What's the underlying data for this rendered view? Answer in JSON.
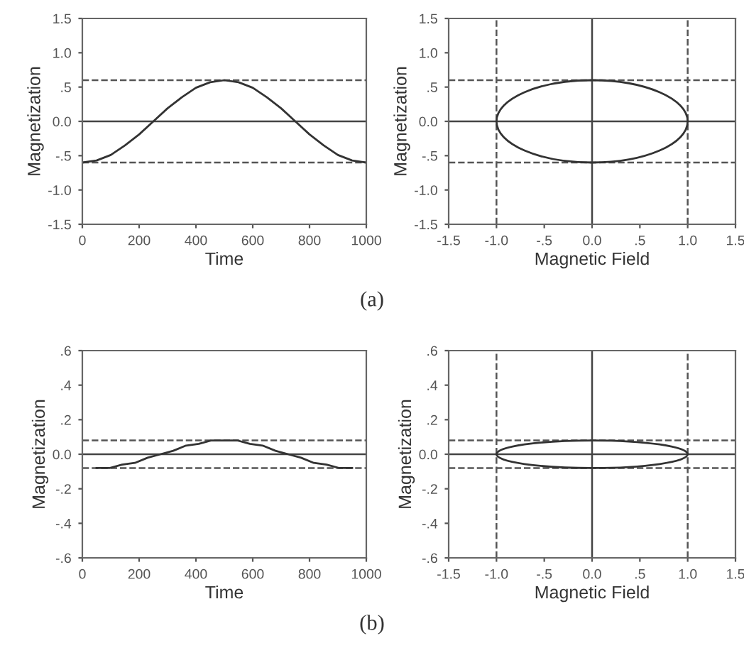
{
  "chart_data": [
    {
      "type": "line",
      "xlabel": "Time",
      "ylabel": "Magnetization",
      "annotations": [
        "(a)"
      ],
      "x": [
        0,
        50,
        100,
        150,
        200,
        250,
        300,
        350,
        400,
        450,
        500,
        550,
        600,
        650,
        700,
        750,
        800,
        850,
        900,
        950,
        1000
      ],
      "series": [
        {
          "color": "#333333",
          "values": [
            -0.6,
            -0.57,
            -0.49,
            -0.35,
            -0.19,
            0,
            0.19,
            0.35,
            0.49,
            0.57,
            0.6,
            0.57,
            0.49,
            0.35,
            0.19,
            0,
            -0.19,
            -0.35,
            -0.49,
            -0.57,
            -0.6
          ]
        }
      ],
      "xlim": [
        0,
        1000
      ],
      "xticks": [
        0,
        200,
        400,
        600,
        800,
        1000
      ],
      "ylim": [
        -1.5,
        1.5
      ],
      "yticks": [
        {
          "value": -1.5,
          "label": "-1.5"
        },
        {
          "value": -1,
          "label": "-1.0"
        },
        {
          "value": -0.5,
          "label": "-.5"
        },
        {
          "value": 0,
          "label": "0.0"
        },
        {
          "value": 0.5,
          "label": ".5"
        },
        {
          "value": 1,
          "label": "1.0"
        },
        {
          "value": 1.5,
          "label": "1.5"
        }
      ],
      "ref_lines": [
        {
          "axis": "y",
          "value": 0,
          "line_style": "solid",
          "color": "#444444"
        },
        {
          "axis": "y",
          "value": 0.6,
          "line_style": "dashed",
          "color": "#555555"
        },
        {
          "axis": "y",
          "value": -0.6,
          "line_style": "dashed",
          "color": "#555555"
        }
      ],
      "grid": false,
      "legend": false
    },
    {
      "type": "line",
      "xlabel": "Magnetic Field",
      "ylabel": "Magnetization",
      "xlim": [
        -1.5,
        1.5
      ],
      "xticks": [
        -1.5,
        {
          "value": -1,
          "label": "-1.0"
        },
        {
          "value": -0.5,
          "label": "-.5"
        },
        {
          "value": 0,
          "label": "0.0"
        },
        {
          "value": 0.5,
          "label": ".5"
        },
        {
          "value": 1,
          "label": "1.0"
        },
        1.5
      ],
      "ylim": [
        -1.5,
        1.5
      ],
      "yticks": [
        -1.5,
        {
          "value": -1,
          "label": "-1.0"
        },
        {
          "value": -0.5,
          "label": "-.5"
        },
        {
          "value": 0,
          "label": "0.0"
        },
        {
          "value": 0.5,
          "label": ".5"
        },
        {
          "value": 1,
          "label": "1.0"
        },
        1.5
      ],
      "ref_lines": [
        {
          "axis": "y",
          "value": 0,
          "line_style": "solid",
          "color": "#444444"
        },
        {
          "axis": "x",
          "value": 0,
          "line_style": "solid",
          "color": "#444444"
        },
        {
          "axis": "y",
          "value": 0.6,
          "line_style": "dashed",
          "color": "#555555"
        },
        {
          "axis": "y",
          "value": -0.6,
          "line_style": "dashed",
          "color": "#555555"
        },
        {
          "axis": "x",
          "value": 1,
          "line_style": "dashed",
          "color": "#555555"
        },
        {
          "axis": "x",
          "value": -1,
          "line_style": "dashed",
          "color": "#555555"
        }
      ],
      "grid": false,
      "legend": false
    },
    {
      "type": "line",
      "xlabel": "Time",
      "ylabel": "Magnetization",
      "annotations": [
        "(b)"
      ],
      "x": [
        50,
        95,
        140,
        185,
        230,
        275,
        320,
        365,
        410,
        455,
        500,
        545,
        590,
        635,
        680,
        725,
        770,
        815,
        860,
        905,
        950
      ],
      "series": [
        {
          "color": "#333333",
          "values": [
            -0.08,
            -0.08,
            -0.06,
            -0.05,
            -0.02,
            0,
            0.02,
            0.05,
            0.06,
            0.08,
            0.08,
            0.08,
            0.06,
            0.05,
            0.02,
            0,
            -0.02,
            -0.05,
            -0.06,
            -0.08,
            -0.08
          ]
        }
      ],
      "xlim": [
        0,
        1000
      ],
      "xticks": [
        0,
        200,
        400,
        600,
        800,
        1000
      ],
      "ylim": [
        -0.6,
        0.6
      ],
      "yticks": [
        {
          "value": -0.6,
          "label": "-.6"
        },
        {
          "value": -0.4,
          "label": "-.4"
        },
        {
          "value": -0.2,
          "label": "-.2"
        },
        {
          "value": 0,
          "label": "0.0"
        },
        {
          "value": 0.2,
          "label": ".2"
        },
        {
          "value": 0.4,
          "label": ".4"
        },
        {
          "value": 0.6,
          "label": ".6"
        }
      ],
      "ref_lines": [
        {
          "axis": "y",
          "value": 0,
          "line_style": "solid",
          "color": "#444444"
        },
        {
          "axis": "y",
          "value": 0.08,
          "line_style": "dashed",
          "color": "#555555"
        },
        {
          "axis": "y",
          "value": -0.08,
          "line_style": "dashed",
          "color": "#555555"
        }
      ],
      "grid": false,
      "legend": false
    },
    {
      "type": "line",
      "xlabel": "Magnetic Field",
      "ylabel": "Magnetization",
      "xlim": [
        -1.5,
        1.5
      ],
      "xticks": [
        -1.5,
        {
          "value": -1,
          "label": "-1.0"
        },
        {
          "value": -0.5,
          "label": "-.5"
        },
        {
          "value": 0,
          "label": "0.0"
        },
        {
          "value": 0.5,
          "label": ".5"
        },
        {
          "value": 1,
          "label": "1.0"
        },
        1.5
      ],
      "ylim": [
        -0.6,
        0.6
      ],
      "yticks": [
        {
          "value": -0.6,
          "label": "-.6"
        },
        {
          "value": -0.4,
          "label": "-.4"
        },
        {
          "value": -0.2,
          "label": "-.2"
        },
        {
          "value": 0,
          "label": "0.0"
        },
        {
          "value": 0.2,
          "label": ".2"
        },
        {
          "value": 0.4,
          "label": ".4"
        },
        {
          "value": 0.6,
          "label": ".6"
        }
      ],
      "ref_lines": [
        {
          "axis": "y",
          "value": 0,
          "line_style": "solid",
          "color": "#444444"
        },
        {
          "axis": "x",
          "value": 0,
          "line_style": "solid",
          "color": "#444444"
        },
        {
          "axis": "y",
          "value": 0.08,
          "line_style": "dashed",
          "color": "#555555"
        },
        {
          "axis": "y",
          "value": -0.08,
          "line_style": "dashed",
          "color": "#555555"
        },
        {
          "axis": "x",
          "value": 1,
          "line_style": "dashed",
          "color": "#555555"
        },
        {
          "axis": "x",
          "value": -1,
          "line_style": "dashed",
          "color": "#555555"
        }
      ],
      "grid": false,
      "legend": false
    }
  ]
}
